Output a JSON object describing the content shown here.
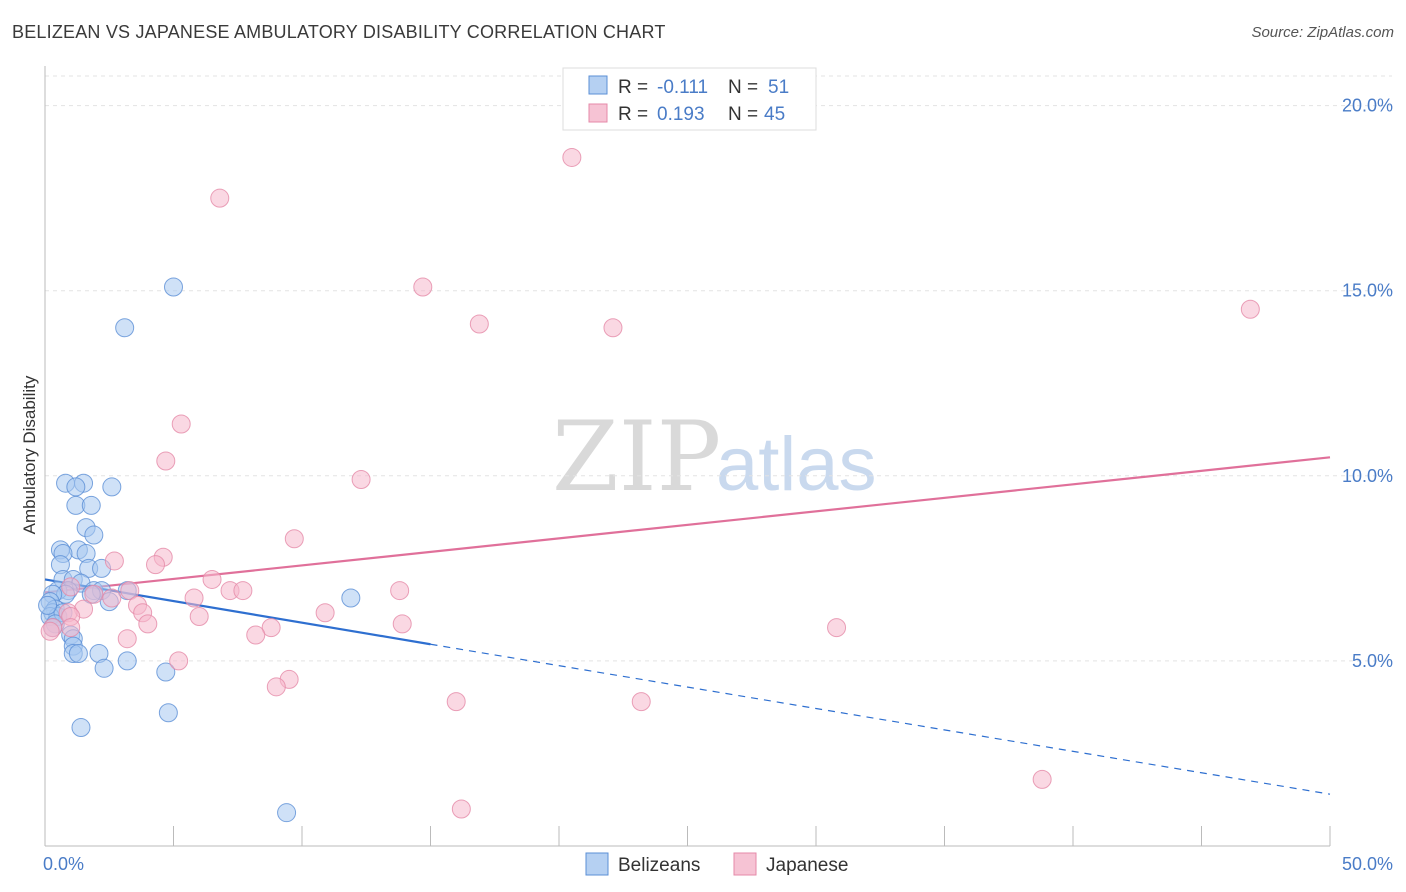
{
  "title": "BELIZEAN VS JAPANESE AMBULATORY DISABILITY CORRELATION CHART",
  "source": "Source: ZipAtlas.com",
  "watermark": {
    "part1": "ZIP",
    "part2": "atlas"
  },
  "legend": {
    "r_label": "R =",
    "n_label": "N =",
    "entries": [
      {
        "r": "-0.111",
        "n": "51"
      },
      {
        "r": "0.193",
        "n": "45"
      }
    ]
  },
  "colors": {
    "belizean_fill": "#a8c8f0",
    "belizean_stroke": "#5b8fd6",
    "belizean_line": "#2e6fd0",
    "japanese_fill": "#f5b8cc",
    "japanese_stroke": "#e58aa8",
    "japanese_line": "#e0709a",
    "tick_text": "#4a7cc7"
  },
  "chart_data": {
    "type": "scatter",
    "ylabel": "Ambulatory Disability",
    "xlim": [
      0,
      50
    ],
    "ylim": [
      0,
      20.8
    ],
    "x_tick_labels": [
      {
        "value": 0,
        "label": "0.0%"
      },
      {
        "value": 50,
        "label": "50.0%"
      }
    ],
    "y_tick_labels": [
      {
        "value": 5,
        "label": "5.0%"
      },
      {
        "value": 10,
        "label": "10.0%"
      },
      {
        "value": 15,
        "label": "15.0%"
      },
      {
        "value": 20,
        "label": "20.0%"
      }
    ],
    "series": [
      {
        "name": "Belizeans",
        "points": [
          [
            5.0,
            15.1
          ],
          [
            3.1,
            14.0
          ],
          [
            0.8,
            9.8
          ],
          [
            1.5,
            9.8
          ],
          [
            1.2,
            9.7
          ],
          [
            2.6,
            9.7
          ],
          [
            1.2,
            9.2
          ],
          [
            1.8,
            9.2
          ],
          [
            1.6,
            8.6
          ],
          [
            1.9,
            8.4
          ],
          [
            0.6,
            8.0
          ],
          [
            1.3,
            8.0
          ],
          [
            1.6,
            7.9
          ],
          [
            0.7,
            7.9
          ],
          [
            0.6,
            7.6
          ],
          [
            1.7,
            7.5
          ],
          [
            2.2,
            7.5
          ],
          [
            0.7,
            7.2
          ],
          [
            1.1,
            7.2
          ],
          [
            1.4,
            7.1
          ],
          [
            0.9,
            6.9
          ],
          [
            1.9,
            6.9
          ],
          [
            2.2,
            6.9
          ],
          [
            3.2,
            6.9
          ],
          [
            0.5,
            6.9
          ],
          [
            0.8,
            6.8
          ],
          [
            0.3,
            6.8
          ],
          [
            1.8,
            6.8
          ],
          [
            0.2,
            6.6
          ],
          [
            2.5,
            6.6
          ],
          [
            11.9,
            6.7
          ],
          [
            0.4,
            6.4
          ],
          [
            0.3,
            6.3
          ],
          [
            0.5,
            6.2
          ],
          [
            0.2,
            6.2
          ],
          [
            0.7,
            6.3
          ],
          [
            0.4,
            6.0
          ],
          [
            0.3,
            5.9
          ],
          [
            1.0,
            5.7
          ],
          [
            1.1,
            5.6
          ],
          [
            1.1,
            5.4
          ],
          [
            1.1,
            5.2
          ],
          [
            1.3,
            5.2
          ],
          [
            2.1,
            5.2
          ],
          [
            3.2,
            5.0
          ],
          [
            2.3,
            4.8
          ],
          [
            4.7,
            4.7
          ],
          [
            4.8,
            3.6
          ],
          [
            1.4,
            3.2
          ],
          [
            9.4,
            0.9
          ],
          [
            0.1,
            6.5
          ]
        ]
      },
      {
        "name": "Japanese",
        "points": [
          [
            20.5,
            18.6
          ],
          [
            6.8,
            17.5
          ],
          [
            14.7,
            15.1
          ],
          [
            16.9,
            14.1
          ],
          [
            22.1,
            14.0
          ],
          [
            46.9,
            14.5
          ],
          [
            5.3,
            11.4
          ],
          [
            4.7,
            10.4
          ],
          [
            12.3,
            9.9
          ],
          [
            9.7,
            8.3
          ],
          [
            2.7,
            7.7
          ],
          [
            4.6,
            7.8
          ],
          [
            4.3,
            7.6
          ],
          [
            6.5,
            7.2
          ],
          [
            1.0,
            7.0
          ],
          [
            3.3,
            6.9
          ],
          [
            7.2,
            6.9
          ],
          [
            7.7,
            6.9
          ],
          [
            13.8,
            6.9
          ],
          [
            1.9,
            6.8
          ],
          [
            5.8,
            6.7
          ],
          [
            2.6,
            6.7
          ],
          [
            3.6,
            6.5
          ],
          [
            1.5,
            6.4
          ],
          [
            0.9,
            6.3
          ],
          [
            3.8,
            6.3
          ],
          [
            10.9,
            6.3
          ],
          [
            1.0,
            6.2
          ],
          [
            6.0,
            6.2
          ],
          [
            4.0,
            6.0
          ],
          [
            1.0,
            5.9
          ],
          [
            0.3,
            5.9
          ],
          [
            8.8,
            5.9
          ],
          [
            13.9,
            6.0
          ],
          [
            30.8,
            5.9
          ],
          [
            0.2,
            5.8
          ],
          [
            8.2,
            5.7
          ],
          [
            3.2,
            5.6
          ],
          [
            5.2,
            5.0
          ],
          [
            9.5,
            4.5
          ],
          [
            9.0,
            4.3
          ],
          [
            16.0,
            3.9
          ],
          [
            23.2,
            3.9
          ],
          [
            38.8,
            1.8
          ],
          [
            16.2,
            1.0
          ]
        ]
      }
    ],
    "trendlines": [
      {
        "series": "Belizeans",
        "x0": 0,
        "y0": 7.2,
        "x1": 15,
        "y1": 5.45,
        "dashed_to_x": 50,
        "dashed_to_y": 1.4
      },
      {
        "series": "Japanese",
        "x0": 0,
        "y0": 6.85,
        "x1": 50,
        "y1": 10.5
      }
    ],
    "grid": true,
    "legend_position": "top-center"
  },
  "bottom_legend": {
    "items": [
      "Belizeans",
      "Japanese"
    ]
  }
}
